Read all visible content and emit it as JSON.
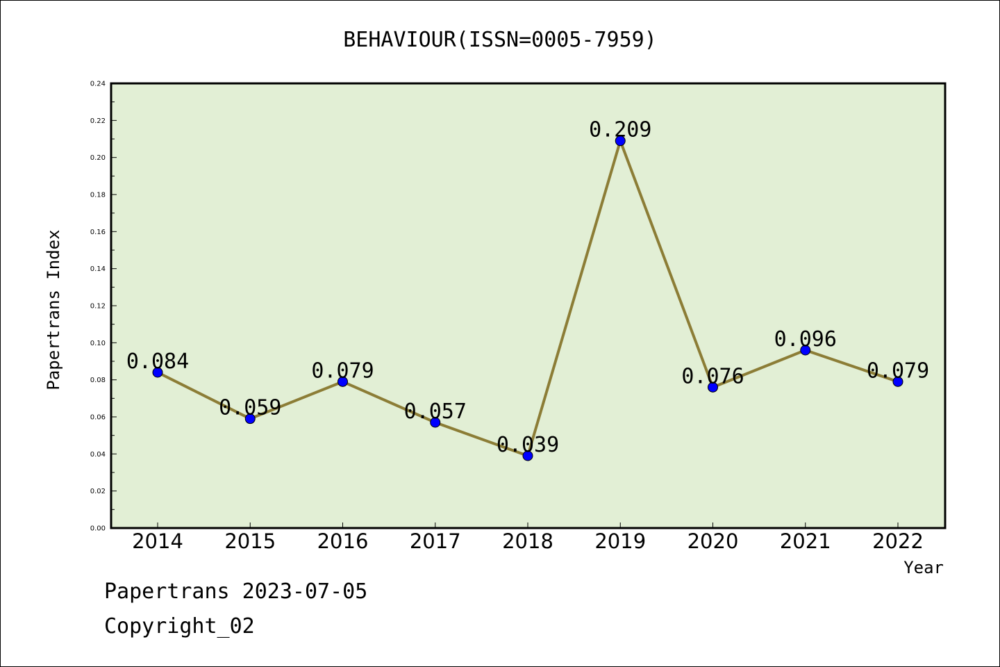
{
  "chart_data": {
    "type": "line",
    "title": "BEHAVIOUR(ISSN=0005-7959)",
    "xlabel": "Year",
    "ylabel": "Papertrans Index",
    "categories": [
      "2014",
      "2015",
      "2016",
      "2017",
      "2018",
      "2019",
      "2020",
      "2021",
      "2022"
    ],
    "values": [
      0.084,
      0.059,
      0.079,
      0.057,
      0.039,
      0.209,
      0.076,
      0.096,
      0.079
    ],
    "data_labels": [
      "0.084",
      "0.059",
      "0.079",
      "0.057",
      "0.039",
      "0.209",
      "0.076",
      "0.096",
      "0.079"
    ],
    "ylim": [
      0,
      0.24
    ],
    "yticks": [
      "0.00",
      "0.02",
      "0.04",
      "0.06",
      "0.08",
      "0.10",
      "0.12",
      "0.14",
      "0.16",
      "0.18",
      "0.20",
      "0.22",
      "0.24"
    ],
    "grid": false,
    "colors": {
      "plot_background": "#e2efd5",
      "line": "#8c7d36",
      "marker": "#0000ff"
    }
  },
  "footer": {
    "line1": "Papertrans 2023-07-05",
    "line2": "Copyright_02"
  }
}
